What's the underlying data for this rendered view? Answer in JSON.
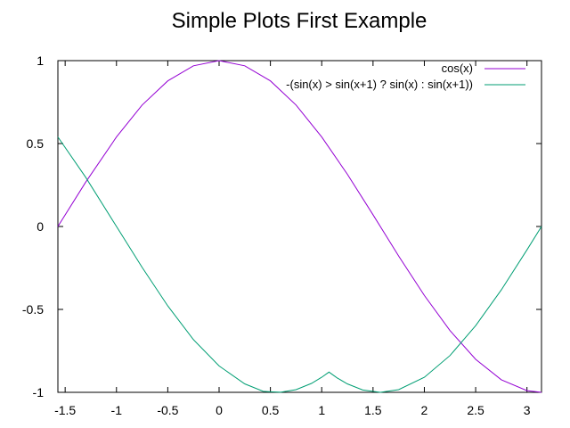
{
  "chart_data": {
    "type": "line",
    "title": "Simple Plots First Example",
    "xlabel": "",
    "ylabel": "",
    "xlim": [
      -1.5708,
      3.1416
    ],
    "ylim": [
      -1,
      1
    ],
    "x_ticks": [
      -1.5,
      -1,
      -0.5,
      0,
      0.5,
      1,
      1.5,
      2,
      2.5,
      3
    ],
    "x_tick_labels": [
      "-1.5",
      "-1",
      "-0.5",
      "0",
      "0.5",
      "1",
      "1.5",
      "2",
      "2.5",
      "3"
    ],
    "y_ticks": [
      -1,
      -0.5,
      0,
      0.5,
      1
    ],
    "y_tick_labels": [
      "-1",
      "-0.5",
      "0",
      "0.5",
      "1"
    ],
    "grid": false,
    "legend_position": "top-right",
    "series": [
      {
        "name": "cos(x)",
        "color": "#9400d3",
        "x": [
          -1.571,
          -1.3,
          -1.0,
          -0.75,
          -0.5,
          -0.25,
          0.0,
          0.25,
          0.5,
          0.75,
          1.0,
          1.25,
          1.5,
          1.75,
          2.0,
          2.25,
          2.5,
          2.75,
          3.0,
          3.142
        ],
        "y": [
          0.0,
          0.267,
          0.54,
          0.732,
          0.878,
          0.969,
          1.0,
          0.969,
          0.878,
          0.732,
          0.54,
          0.315,
          0.071,
          -0.178,
          -0.416,
          -0.628,
          -0.801,
          -0.924,
          -0.99,
          -1.0
        ]
      },
      {
        "name": "-(sin(x) > sin(x+1) ? sin(x) : sin(x+1))",
        "color": "#009e73",
        "x": [
          -1.571,
          -1.3,
          -1.0,
          -0.75,
          -0.5,
          -0.25,
          0.0,
          0.25,
          0.43,
          0.5,
          0.6,
          0.75,
          0.9,
          1.0,
          1.071,
          1.15,
          1.25,
          1.4,
          1.571,
          1.75,
          2.0,
          2.25,
          2.5,
          2.75,
          3.0,
          3.142
        ],
        "y": [
          0.54,
          0.297,
          0.0,
          -0.247,
          -0.479,
          -0.682,
          -0.841,
          -0.949,
          -0.994,
          -0.997,
          -0.9996,
          -0.984,
          -0.946,
          -0.909,
          -0.878,
          -0.913,
          -0.949,
          -0.986,
          -1.0,
          -0.984,
          -0.909,
          -0.778,
          -0.598,
          -0.382,
          -0.141,
          0.0
        ]
      }
    ]
  }
}
